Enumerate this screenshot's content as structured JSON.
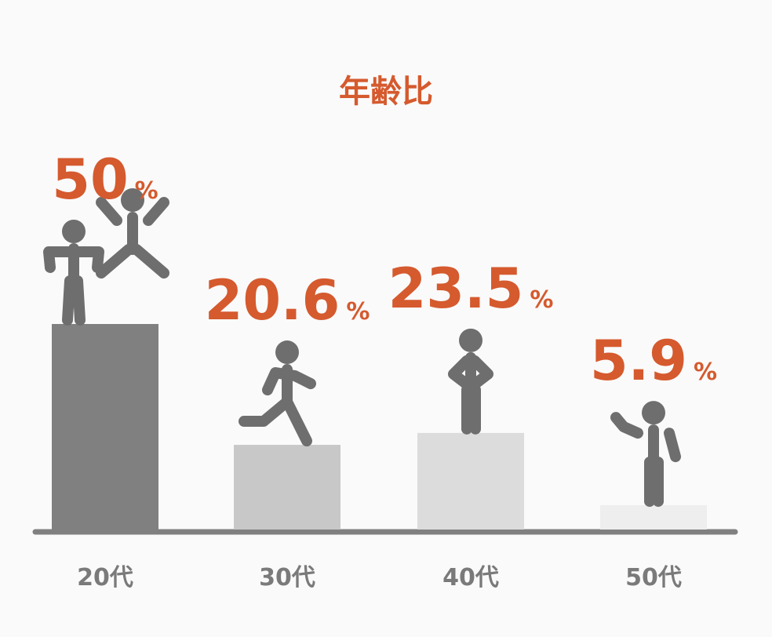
{
  "chart_data": {
    "type": "bar",
    "title": "年齢比",
    "categories": [
      "20代",
      "30代",
      "40代",
      "50代"
    ],
    "values": [
      50,
      20.6,
      23.5,
      5.9
    ],
    "value_unit": "%",
    "colors": [
      "#808080",
      "#c8c8c8",
      "#dcdcdc",
      "#eeeeee"
    ],
    "label_color": "#d55a2e"
  }
}
